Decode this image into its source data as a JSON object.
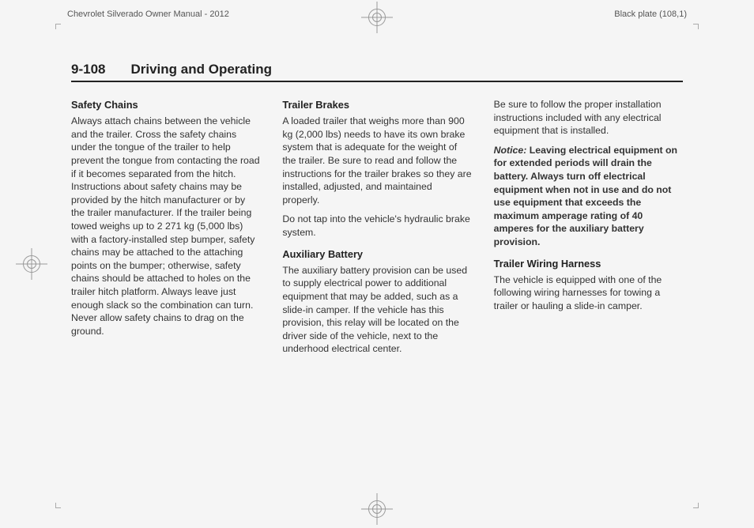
{
  "header": {
    "left": "Chevrolet Silverado Owner Manual - 2012",
    "right": "Black plate (108,1)"
  },
  "pageTitle": {
    "number": "9-108",
    "section": "Driving and Operating"
  },
  "col1": {
    "h1": "Safety Chains",
    "p1": "Always attach chains between the vehicle and the trailer. Cross the safety chains under the tongue of the trailer to help prevent the tongue from contacting the road if it becomes separated from the hitch. Instructions about safety chains may be provided by the hitch manufacturer or by the trailer manufacturer. If the trailer being towed weighs up to 2 271 kg (5,000 lbs) with a factory-installed step bumper, safety chains may be attached to the attaching points on the bumper; otherwise, safety chains should be attached to holes on the trailer hitch platform. Always leave just enough slack so the combination can turn. Never allow safety chains to drag on the ground."
  },
  "col2": {
    "h1": "Trailer Brakes",
    "p1": "A loaded trailer that weighs more than 900 kg (2,000 lbs) needs to have its own brake system that is adequate for the weight of the trailer. Be sure to read and follow the instructions for the trailer brakes so they are installed, adjusted, and maintained properly.",
    "p2": "Do not tap into the vehicle's hydraulic brake system.",
    "h2": "Auxiliary Battery",
    "p3": "The auxiliary battery provision can be used to supply electrical power to additional equipment that may be added, such as a slide-in camper. If the vehicle has this provision, this relay will be located on the driver side of the vehicle, next to the underhood electrical center."
  },
  "col3": {
    "p1": "Be sure to follow the proper installation instructions included with any electrical equipment that is installed.",
    "noticeLabel": "Notice:",
    "noticeBody": "Leaving electrical equipment on for extended periods will drain the battery. Always turn off electrical equipment when not in use and do not use equipment that exceeds the maximum amperage rating of 40 amperes for the auxiliary battery provision.",
    "h1": "Trailer Wiring Harness",
    "p2": "The vehicle is equipped with one of the following wiring harnesses for towing a trailer or hauling a slide-in camper."
  }
}
